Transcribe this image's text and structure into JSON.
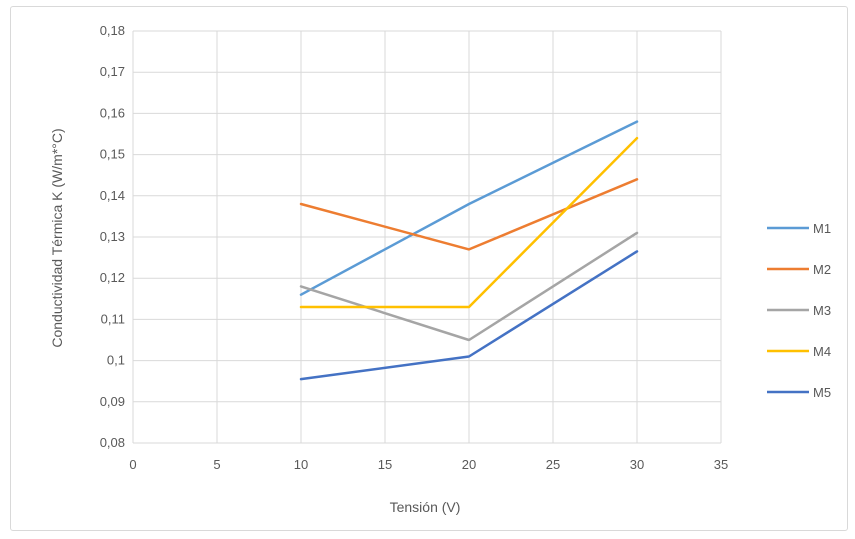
{
  "chart_data": {
    "type": "line",
    "title": "",
    "xlabel": "Tensión  (V)",
    "ylabel": "Conductividad Térmica K (W/m*°C)",
    "xlim": [
      0,
      35
    ],
    "ylim": [
      0.08,
      0.18
    ],
    "x_ticks": [
      0,
      5,
      10,
      15,
      20,
      25,
      30,
      35
    ],
    "x_tick_labels": [
      "0",
      "5",
      "10",
      "15",
      "20",
      "25",
      "30",
      "35"
    ],
    "y_ticks": [
      0.08,
      0.09,
      0.1,
      0.11,
      0.12,
      0.13,
      0.14,
      0.15,
      0.16,
      0.17,
      0.18
    ],
    "y_tick_labels": [
      "0,08",
      "0,09",
      "0,1",
      "0,11",
      "0,12",
      "0,13",
      "0,14",
      "0,15",
      "0,16",
      "0,17",
      "0,18"
    ],
    "grid": true,
    "legend_position": "right",
    "x": [
      10,
      20,
      30
    ],
    "series": [
      {
        "name": "M1",
        "color": "#5b9bd5",
        "values": [
          0.116,
          0.138,
          0.158
        ]
      },
      {
        "name": "M2",
        "color": "#ed7d31",
        "values": [
          0.138,
          0.127,
          0.144
        ]
      },
      {
        "name": "M3",
        "color": "#a5a5a5",
        "values": [
          0.118,
          0.105,
          0.131
        ]
      },
      {
        "name": "M4",
        "color": "#ffc000",
        "values": [
          0.113,
          0.113,
          0.154
        ]
      },
      {
        "name": "M5",
        "color": "#4472c4",
        "values": [
          0.0955,
          0.101,
          0.1265
        ]
      }
    ]
  }
}
